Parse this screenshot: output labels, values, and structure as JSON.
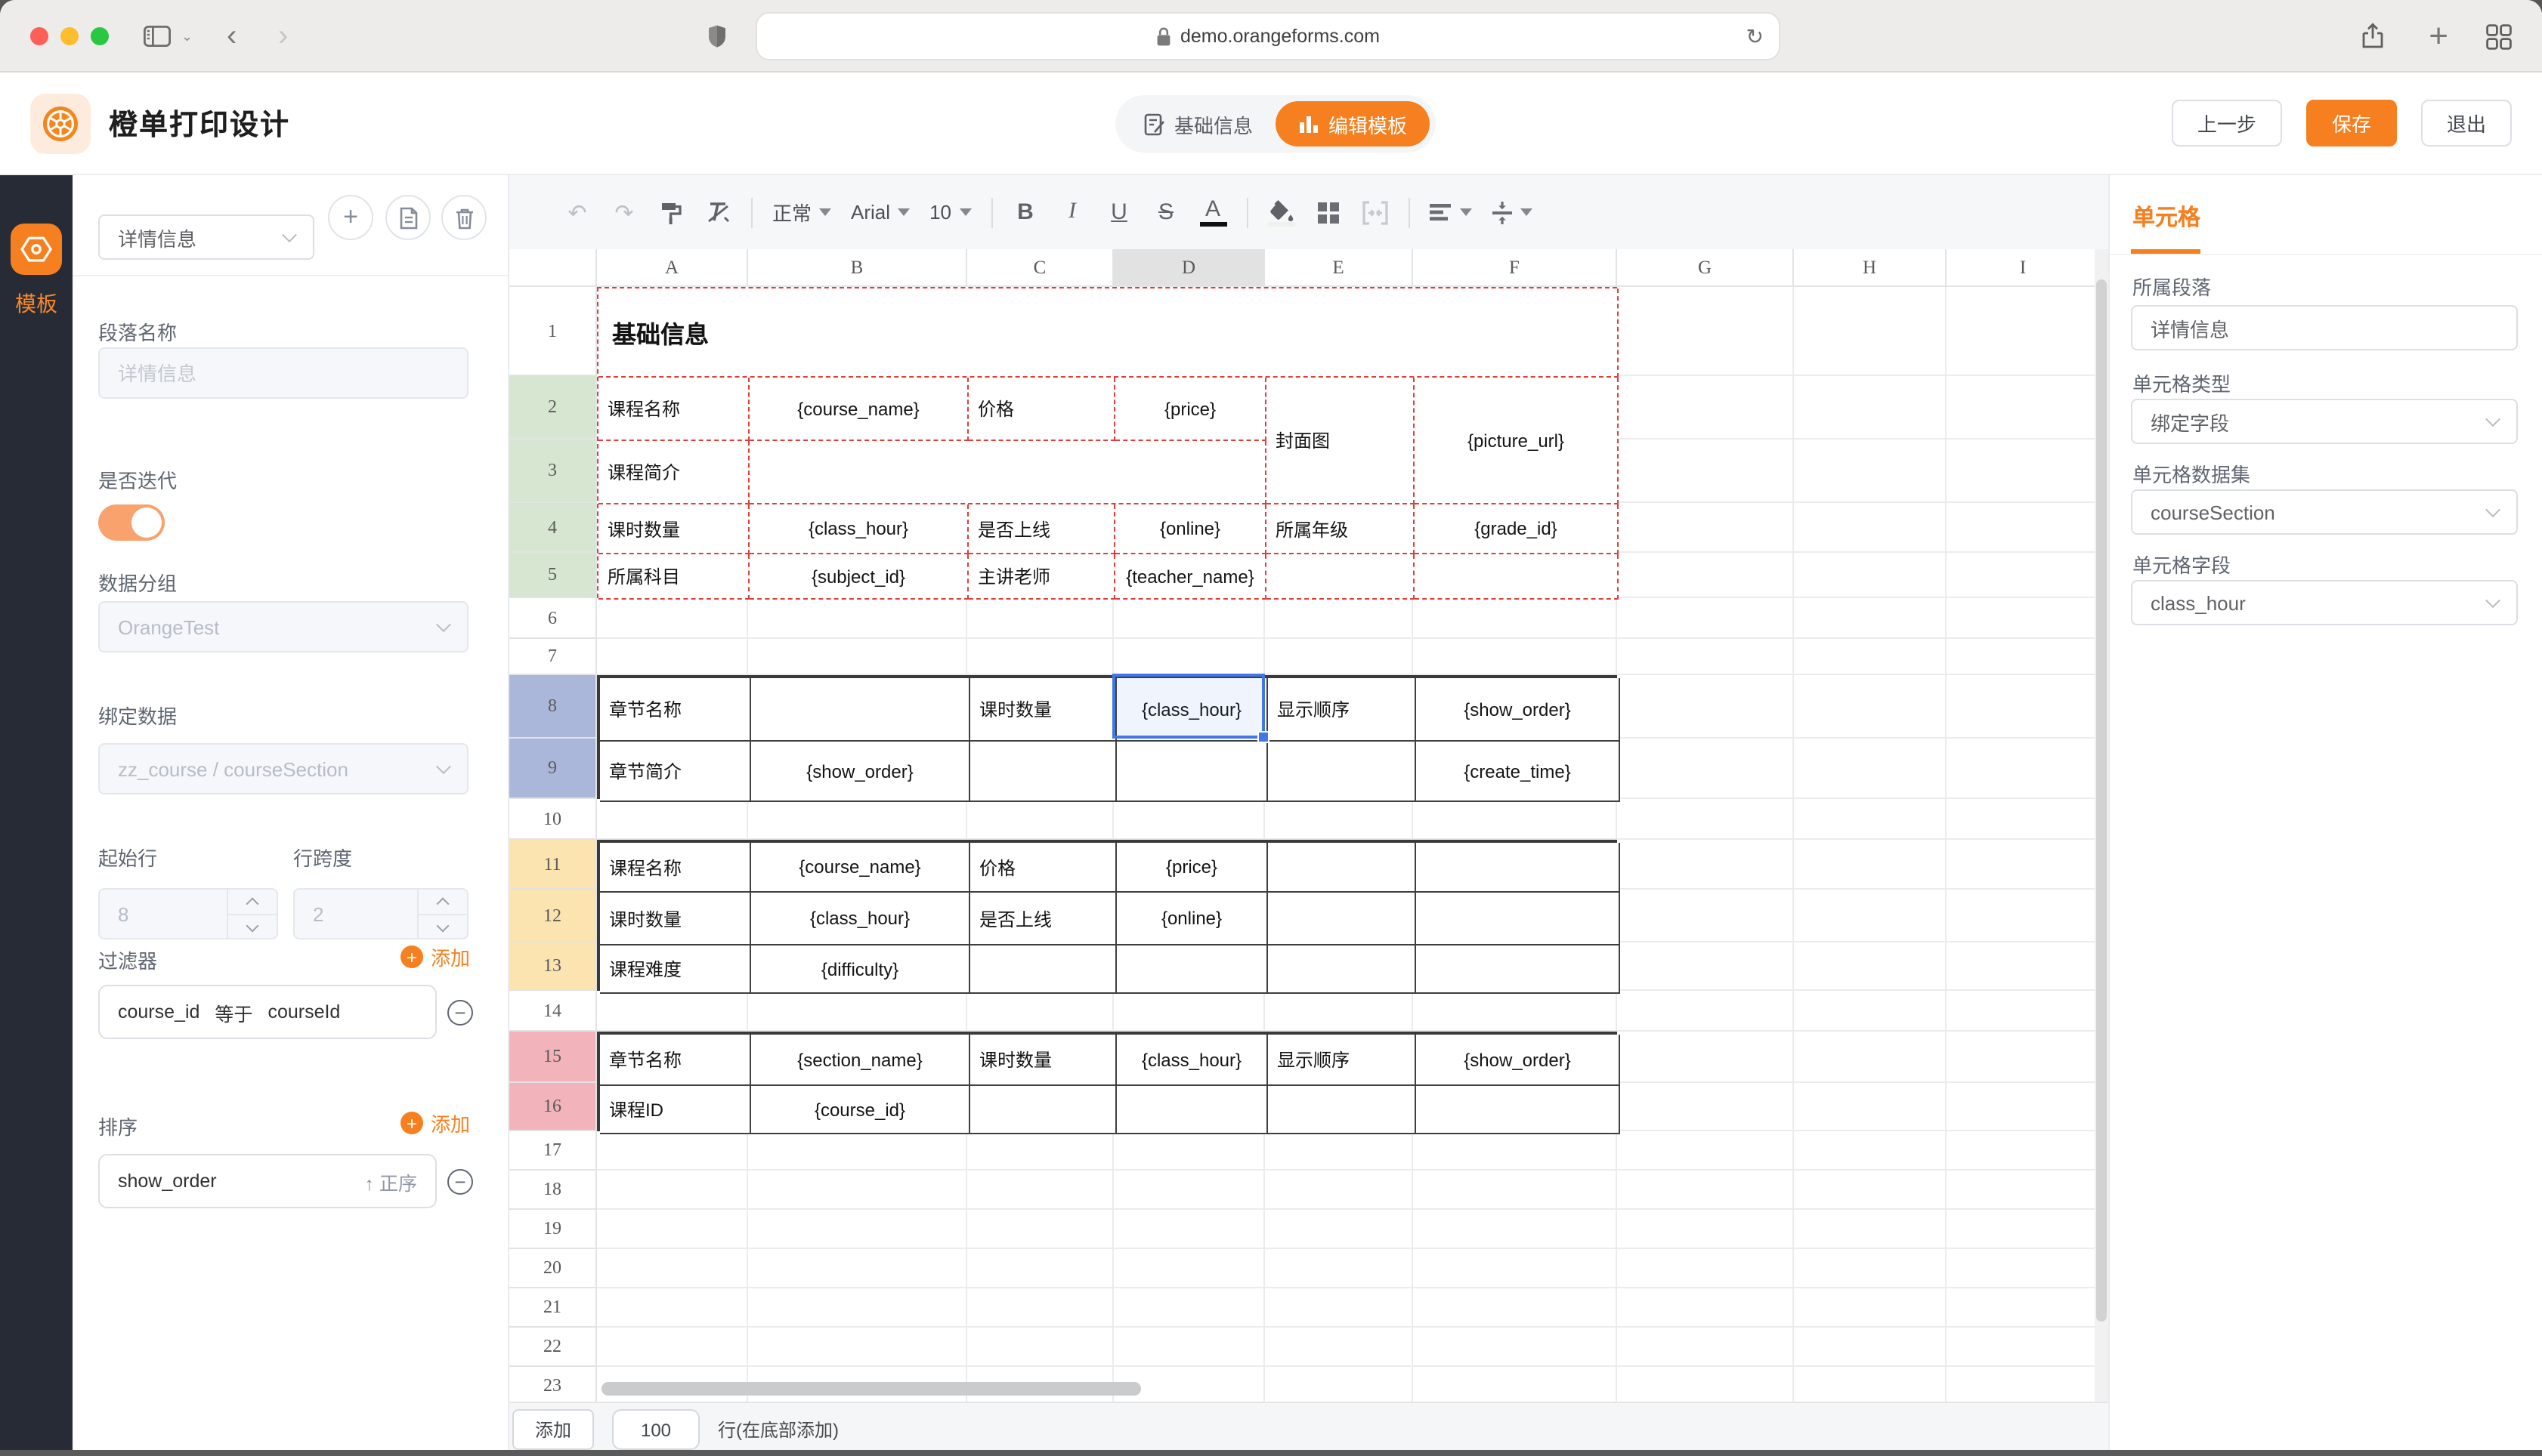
{
  "browser": {
    "url": "demo.orangeforms.com"
  },
  "icons": {
    "back": "‹",
    "forward": "›",
    "reload": "↻",
    "plus": "+",
    "undo": "↶",
    "redo": "↷",
    "caret": "▾",
    "ascending": "↑",
    "minus": "−"
  },
  "app": {
    "title": "橙单打印设计",
    "tab_basic": "基础信息",
    "tab_edit": "编辑模板",
    "btn_prev": "上一步",
    "btn_save": "保存",
    "btn_exit": "退出"
  },
  "rail": {
    "template": "模板"
  },
  "panel": {
    "section_select": "详情信息",
    "para_name_label": "段落名称",
    "para_name_placeholder": "详情信息",
    "iterate_label": "是否迭代",
    "group_label": "数据分组",
    "group_value": "OrangeTest",
    "bind_label": "绑定数据",
    "bind_value": "zz_course / courseSection",
    "start_row_label": "起始行",
    "start_row_value": "8",
    "row_span_label": "行跨度",
    "row_span_value": "2",
    "filter_label": "过滤器",
    "filter_add": "添加",
    "filter_item": {
      "field": "course_id",
      "op": "等于",
      "value": "courseId"
    },
    "sort_label": "排序",
    "sort_add": "添加",
    "sort_item": {
      "field": "show_order",
      "dir": "正序"
    }
  },
  "toolbar": {
    "style": "正常",
    "font": "Arial",
    "size": "10",
    "bold": "B",
    "italic": "I",
    "underline": "U",
    "strike": "S",
    "color": "A"
  },
  "cell_panel": {
    "title": "单元格",
    "section_label": "所属段落",
    "section_value": "详情信息",
    "type_label": "单元格类型",
    "type_value": "绑定字段",
    "dataset_label": "单元格数据集",
    "dataset_value": "courseSection",
    "field_label": "单元格字段",
    "field_value": "class_hour"
  },
  "bottom": {
    "add": "添加",
    "count": "100",
    "suffix": "行(在底部添加)"
  },
  "sheet": {
    "row_header_w": 58,
    "col_header_h": 25,
    "columns": [
      {
        "letter": "A",
        "w": 100
      },
      {
        "letter": "B",
        "w": 145
      },
      {
        "letter": "C",
        "w": 97
      },
      {
        "letter": "D",
        "w": 100
      },
      {
        "letter": "E",
        "w": 98
      },
      {
        "letter": "F",
        "w": 135
      },
      {
        "letter": "G",
        "w": 117
      },
      {
        "letter": "H",
        "w": 101
      },
      {
        "letter": "I",
        "w": 102
      }
    ],
    "rows": [
      {
        "n": 1,
        "h": 59,
        "bg": ""
      },
      {
        "n": 2,
        "h": 42,
        "bg": "green"
      },
      {
        "n": 3,
        "h": 42,
        "bg": "green"
      },
      {
        "n": 4,
        "h": 33,
        "bg": "green"
      },
      {
        "n": 5,
        "h": 30,
        "bg": "green"
      },
      {
        "n": 6,
        "h": 27,
        "bg": ""
      },
      {
        "n": 7,
        "h": 24,
        "bg": ""
      },
      {
        "n": 8,
        "h": 42,
        "bg": "blue"
      },
      {
        "n": 9,
        "h": 40,
        "bg": "blue"
      },
      {
        "n": 10,
        "h": 27,
        "bg": ""
      },
      {
        "n": 11,
        "h": 33,
        "bg": "yellow"
      },
      {
        "n": 12,
        "h": 35,
        "bg": "yellow"
      },
      {
        "n": 13,
        "h": 32,
        "bg": "yellow"
      },
      {
        "n": 14,
        "h": 27,
        "bg": ""
      },
      {
        "n": 15,
        "h": 34,
        "bg": "pink"
      },
      {
        "n": 16,
        "h": 32,
        "bg": "pink"
      },
      {
        "n": 17,
        "h": 26,
        "bg": ""
      },
      {
        "n": 18,
        "h": 26,
        "bg": ""
      },
      {
        "n": 19,
        "h": 26,
        "bg": ""
      },
      {
        "n": 20,
        "h": 26,
        "bg": ""
      },
      {
        "n": 21,
        "h": 26,
        "bg": ""
      },
      {
        "n": 22,
        "h": 26,
        "bg": ""
      },
      {
        "n": 23,
        "h": 26,
        "bg": ""
      }
    ],
    "colors": {
      "green": "#d7e6d0",
      "blue": "#abb7da",
      "yellow": "#fbe4b0",
      "pink": "#f2b4ba"
    },
    "selected": {
      "row": 8,
      "col": "D"
    },
    "sections": [
      {
        "start": 1,
        "style": "dashed",
        "cells": [
          [
            0,
            0,
            1,
            6,
            "基础信息",
            "l",
            "title"
          ],
          [
            1,
            0,
            1,
            1,
            "课程名称",
            "l",
            ""
          ],
          [
            1,
            1,
            1,
            1,
            "{course_name}",
            "c",
            ""
          ],
          [
            1,
            2,
            1,
            1,
            "价格",
            "l",
            ""
          ],
          [
            1,
            3,
            1,
            1,
            "{price}",
            "c",
            ""
          ],
          [
            1,
            4,
            2,
            1,
            "封面图",
            "l",
            ""
          ],
          [
            1,
            5,
            2,
            1,
            "{picture_url}",
            "c",
            ""
          ],
          [
            2,
            0,
            1,
            1,
            "课程简介",
            "l",
            ""
          ],
          [
            2,
            1,
            1,
            3,
            "",
            "l",
            ""
          ],
          [
            3,
            0,
            1,
            1,
            "课时数量",
            "l",
            ""
          ],
          [
            3,
            1,
            1,
            1,
            "{class_hour}",
            "c",
            ""
          ],
          [
            3,
            2,
            1,
            1,
            "是否上线",
            "l",
            ""
          ],
          [
            3,
            3,
            1,
            1,
            "{online}",
            "c",
            ""
          ],
          [
            3,
            4,
            1,
            1,
            "所属年级",
            "l",
            ""
          ],
          [
            3,
            5,
            1,
            1,
            "{grade_id}",
            "c",
            ""
          ],
          [
            4,
            0,
            1,
            1,
            "所属科目",
            "l",
            ""
          ],
          [
            4,
            1,
            1,
            1,
            "{subject_id}",
            "c",
            ""
          ],
          [
            4,
            2,
            1,
            1,
            "主讲老师",
            "l",
            ""
          ],
          [
            4,
            3,
            1,
            1,
            "{teacher_name}",
            "c",
            ""
          ],
          [
            4,
            4,
            1,
            1,
            "",
            "l",
            ""
          ],
          [
            4,
            5,
            1,
            1,
            "",
            "l",
            ""
          ]
        ]
      },
      {
        "start": 8,
        "style": "solid",
        "cells": [
          [
            0,
            0,
            1,
            1,
            "章节名称",
            "l",
            ""
          ],
          [
            0,
            1,
            1,
            1,
            "",
            "l",
            ""
          ],
          [
            0,
            2,
            1,
            1,
            "课时数量",
            "l",
            ""
          ],
          [
            0,
            3,
            1,
            1,
            "{class_hour}",
            "c",
            ""
          ],
          [
            0,
            4,
            1,
            1,
            "显示顺序",
            "l",
            ""
          ],
          [
            0,
            5,
            1,
            1,
            "{show_order}",
            "c",
            ""
          ],
          [
            1,
            0,
            1,
            1,
            "章节简介",
            "l",
            ""
          ],
          [
            1,
            1,
            1,
            1,
            "{show_order}",
            "c",
            ""
          ],
          [
            1,
            2,
            1,
            1,
            "",
            "l",
            ""
          ],
          [
            1,
            3,
            1,
            1,
            "",
            "l",
            ""
          ],
          [
            1,
            4,
            1,
            1,
            "",
            "l",
            ""
          ],
          [
            1,
            5,
            1,
            1,
            "{create_time}",
            "c",
            ""
          ]
        ]
      },
      {
        "start": 11,
        "style": "solid",
        "cells": [
          [
            0,
            0,
            1,
            1,
            "课程名称",
            "l",
            ""
          ],
          [
            0,
            1,
            1,
            1,
            "{course_name}",
            "c",
            ""
          ],
          [
            0,
            2,
            1,
            1,
            "价格",
            "l",
            ""
          ],
          [
            0,
            3,
            1,
            1,
            "{price}",
            "c",
            ""
          ],
          [
            0,
            4,
            1,
            1,
            "",
            "l",
            ""
          ],
          [
            0,
            5,
            1,
            1,
            "",
            "l",
            ""
          ],
          [
            1,
            0,
            1,
            1,
            "课时数量",
            "l",
            ""
          ],
          [
            1,
            1,
            1,
            1,
            "{class_hour}",
            "c",
            ""
          ],
          [
            1,
            2,
            1,
            1,
            "是否上线",
            "l",
            ""
          ],
          [
            1,
            3,
            1,
            1,
            "{online}",
            "c",
            ""
          ],
          [
            1,
            4,
            1,
            1,
            "",
            "l",
            ""
          ],
          [
            1,
            5,
            1,
            1,
            "",
            "l",
            ""
          ],
          [
            2,
            0,
            1,
            1,
            "课程难度",
            "l",
            ""
          ],
          [
            2,
            1,
            1,
            1,
            "{difficulty}",
            "c",
            ""
          ],
          [
            2,
            2,
            1,
            1,
            "",
            "l",
            ""
          ],
          [
            2,
            3,
            1,
            1,
            "",
            "l",
            ""
          ],
          [
            2,
            4,
            1,
            1,
            "",
            "l",
            ""
          ],
          [
            2,
            5,
            1,
            1,
            "",
            "l",
            ""
          ]
        ]
      },
      {
        "start": 15,
        "style": "solid",
        "cells": [
          [
            0,
            0,
            1,
            1,
            "章节名称",
            "l",
            ""
          ],
          [
            0,
            1,
            1,
            1,
            "{section_name}",
            "c",
            ""
          ],
          [
            0,
            2,
            1,
            1,
            "课时数量",
            "l",
            ""
          ],
          [
            0,
            3,
            1,
            1,
            "{class_hour}",
            "c",
            ""
          ],
          [
            0,
            4,
            1,
            1,
            "显示顺序",
            "l",
            ""
          ],
          [
            0,
            5,
            1,
            1,
            "{show_order}",
            "c",
            ""
          ],
          [
            1,
            0,
            1,
            1,
            "课程ID",
            "l",
            ""
          ],
          [
            1,
            1,
            1,
            1,
            "{course_id}",
            "c",
            ""
          ],
          [
            1,
            2,
            1,
            1,
            "",
            "l",
            ""
          ],
          [
            1,
            3,
            1,
            1,
            "",
            "l",
            ""
          ],
          [
            1,
            4,
            1,
            1,
            "",
            "l",
            ""
          ],
          [
            1,
            5,
            1,
            1,
            "",
            "l",
            ""
          ]
        ]
      }
    ]
  }
}
